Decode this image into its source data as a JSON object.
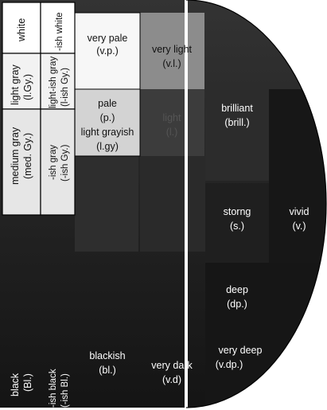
{
  "diagram": {
    "cells": {
      "white": "white",
      "ish_white": "-ish white",
      "light_gray": "light gray",
      "light_gray_abbr": "(l.Gy.)",
      "light_ish_gray": "light-ish gray",
      "light_ish_gray_abbr": "(l-ish Gy.)",
      "medium_gray": "medium gray",
      "medium_gray_abbr": "(med. Gy.)",
      "ish_gray": "-ish gray",
      "ish_gray_abbr": "(-ish Gy.)",
      "black": "black",
      "black_abbr": "(Bl.)",
      "ish_black": "-ish black",
      "ish_black_abbr": "(-ish Bl.)",
      "very_pale": "very pale",
      "very_pale_abbr": "(v.p.)",
      "pale": "pale",
      "pale_abbr": "(p.)",
      "light_grayish": "light grayish",
      "light_grayish_abbr": "(l.gy)",
      "blackish": "blackish",
      "blackish_abbr": "(bl.)",
      "very_light": "very light",
      "very_light_abbr": "(v.l.)",
      "light": "light",
      "light_abbr": "(l.)",
      "very_dark": "very dark",
      "very_dark_abbr": "(v.d)",
      "brilliant": "brilliant",
      "brilliant_abbr": "(brill.)",
      "strong": "storng",
      "strong_abbr": "(s.)",
      "deep": "deep",
      "deep_abbr": "(dp.)",
      "very_deep": "very deep",
      "very_deep_abbr": "(v.dp.)",
      "vivid": "vivid",
      "vivid_abbr": "(v.)"
    },
    "colors": {
      "background": "#ffffff",
      "outline": "#000000",
      "white_cell": "#ffffff",
      "light_gray_cell": "#f0f0f0",
      "mid_gray_cell": "#e4e4e4",
      "very_pale_cell": "#f7f7f7",
      "pale_cell": "#d6d6d6",
      "light_grayish_cell": "#c9c9c9",
      "very_light_cell": "#8c8c8c",
      "light_cell": "#3c3c3c",
      "dark_tones": "#262626",
      "darkest": "#111111",
      "separator": "#ffffff"
    }
  }
}
